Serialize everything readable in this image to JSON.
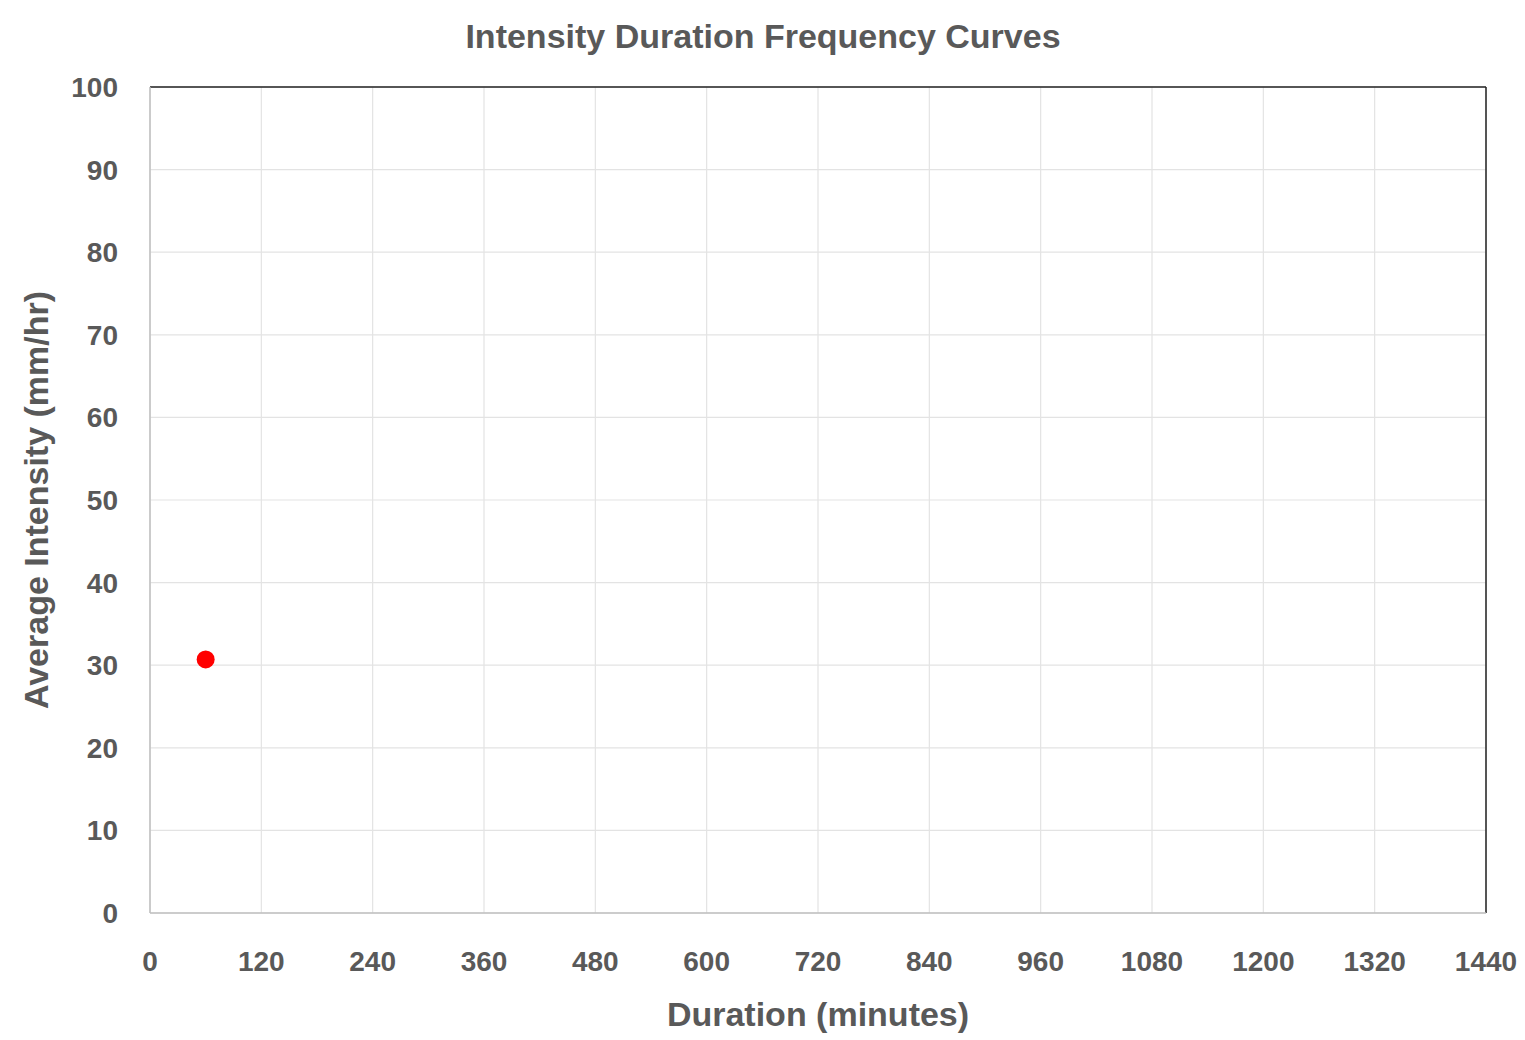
{
  "chart_data": {
    "type": "scatter",
    "title": "Intensity Duration Frequency Curves",
    "x_label": "Duration (minutes)",
    "y_label": "Average Intensity (mm/hr)",
    "x": [
      60
    ],
    "values": [
      30.7
    ],
    "color": "#ff0000",
    "marker": "circle",
    "xlim": [
      0,
      1440
    ],
    "xticks": [
      0,
      120,
      240,
      360,
      480,
      600,
      720,
      840,
      960,
      1080,
      1200,
      1320,
      1440
    ],
    "ylim": [
      0,
      100
    ],
    "yticks": [
      0,
      10,
      20,
      30,
      40,
      50,
      60,
      70,
      80,
      90,
      100
    ],
    "grid": true
  }
}
